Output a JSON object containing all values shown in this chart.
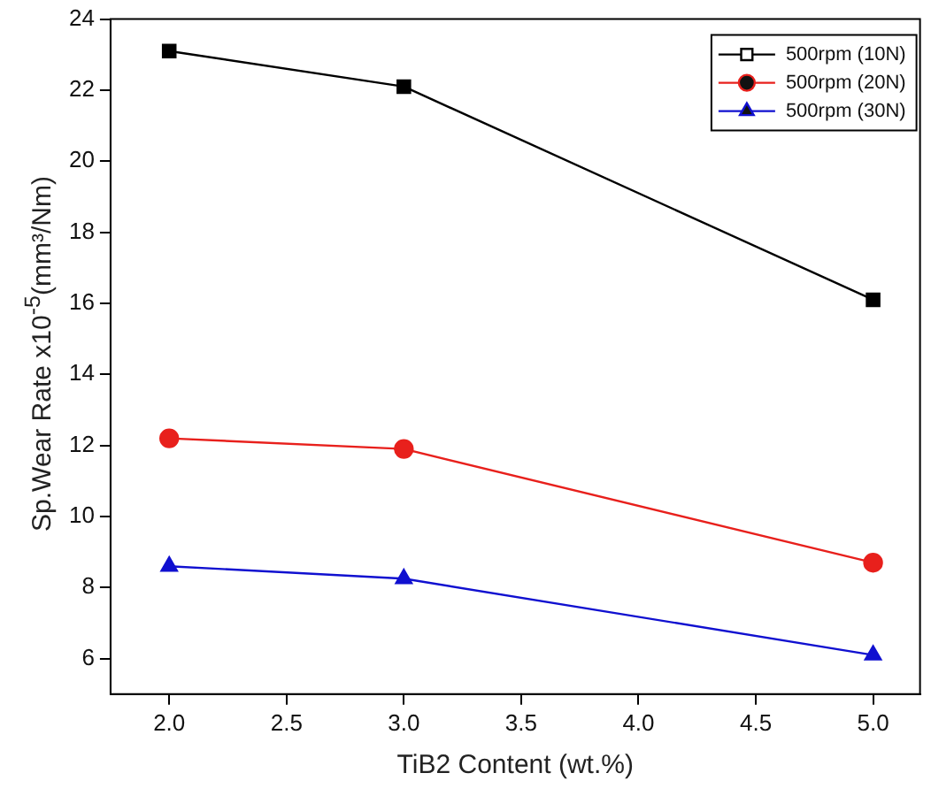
{
  "chart_data": {
    "type": "line",
    "xlabel": "TiB2 Content (wt.%)",
    "ylabel": "Sp.Wear Rate x10$^{-5}$(mm³/Nm)",
    "x": [
      2.0,
      3.0,
      5.0
    ],
    "series": [
      {
        "name": "500rpm (10N)",
        "color": "#000000",
        "marker": "square",
        "values": [
          23.1,
          22.1,
          16.1
        ]
      },
      {
        "name": "500rpm (20N)",
        "color": "#e8201c",
        "marker": "circle",
        "values": [
          12.2,
          11.9,
          8.7
        ]
      },
      {
        "name": "500rpm (30N)",
        "color": "#1010d0",
        "marker": "triangle",
        "values": [
          8.6,
          8.25,
          6.1
        ]
      }
    ],
    "xlim": [
      1.75,
      5.2
    ],
    "xticks": [
      {
        "value": 2,
        "label": "2.0"
      },
      {
        "value": 2.5,
        "label": "2.5"
      },
      {
        "value": 3,
        "label": "3.0"
      },
      {
        "value": 3.5,
        "label": "3.5"
      },
      {
        "value": 4,
        "label": "4.0"
      },
      {
        "value": 4.5,
        "label": "4.5"
      },
      {
        "value": 5,
        "label": "5.0"
      }
    ],
    "ylim": [
      5,
      24
    ],
    "yticks": [
      6,
      8,
      10,
      12,
      14,
      16,
      18,
      20,
      22,
      24
    ],
    "grid": false,
    "legend": "top right",
    "line_style": "solid"
  }
}
